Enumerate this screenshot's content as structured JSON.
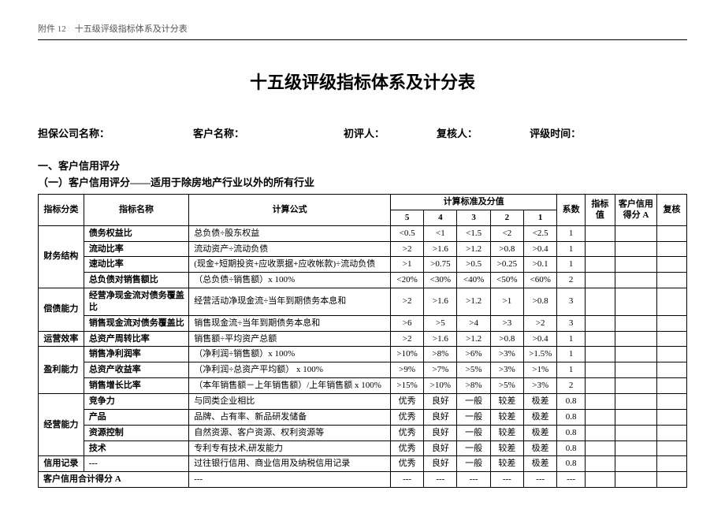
{
  "page_header": "附件 12　十五级评级指标体系及计分表",
  "title": "十五级评级指标体系及计分表",
  "form": {
    "company": "担保公司名称：",
    "customer": "客户名称：",
    "first_reviewer": "初评人：",
    "re_reviewer": "复核人：",
    "rating_time": "评级时间："
  },
  "section1": "一、客户信用评分",
  "section1_sub": "（一）客户信用评分——适用于除房地产行业以外的所有行业",
  "cols": {
    "cat": "指标分类",
    "name": "指标名称",
    "formula": "计算公式",
    "std_group": "计算标准及分值",
    "s5": "5",
    "s4": "4",
    "s3": "3",
    "s2": "2",
    "s1": "1",
    "coef": "系数",
    "val": "指标值",
    "scoreA": "客户信用得分 A",
    "rev": "复核"
  },
  "groups": [
    {
      "cat": "财务结构",
      "rows": [
        {
          "name": "债务权益比",
          "formula": "总负债÷股东权益",
          "s": [
            "<0.5",
            "<1",
            "<1.5",
            "<2",
            "<2.5"
          ],
          "coef": "1"
        },
        {
          "name": "流动比率",
          "formula": "流动资产÷流动负债",
          "s": [
            ">2",
            ">1.6",
            ">1.2",
            ">0.8",
            ">0.4"
          ],
          "coef": "1"
        },
        {
          "name": "速动比率",
          "formula": "(现金+短期投资+应收票据+应收帐款)÷流动负债",
          "s": [
            ">1",
            ">0.75",
            ">0.5",
            ">0.25",
            ">0.1"
          ],
          "coef": "1"
        },
        {
          "name": "总负债对销售额比",
          "formula": "（总负债÷销售额）x 100%",
          "s": [
            "<20%",
            "<30%",
            "<40%",
            "<50%",
            "<60%"
          ],
          "coef": "2"
        }
      ]
    },
    {
      "cat": "偿债能力",
      "rows": [
        {
          "name": "经营净现金流对债务覆盖比",
          "formula": "经营活动净现金流÷当年到期债务本息和",
          "s": [
            ">2",
            ">1.6",
            ">1.2",
            ">1",
            ">0.8"
          ],
          "coef": "3"
        },
        {
          "name": "销售现金流对债务覆盖比",
          "formula": "销售现金流÷当年到期债务本息和",
          "s": [
            ">6",
            ">5",
            ">4",
            ">3",
            ">2"
          ],
          "coef": "3"
        }
      ]
    },
    {
      "cat": "运营效率",
      "rows": [
        {
          "name": "总资产周转比率",
          "formula": "销售额÷平均资产总额",
          "s": [
            ">2",
            ">1.6",
            ">1.2",
            ">0.8",
            ">0.4"
          ],
          "coef": "1"
        }
      ]
    },
    {
      "cat": "盈利能力",
      "rows": [
        {
          "name": "销售净利润率",
          "formula": "（净利润÷销售额）x 100%",
          "s": [
            ">10%",
            ">8%",
            ">6%",
            ">3%",
            ">1.5%"
          ],
          "coef": "1"
        },
        {
          "name": "总资产收益率",
          "formula": "（净利润÷总资产平均额） x 100%",
          "s": [
            ">9%",
            ">7%",
            ">5%",
            ">3%",
            ">1%"
          ],
          "coef": "1"
        },
        {
          "name": "销售增长比率",
          "formula": "（本年销售额－上年销售额）/上年销售额 x 100%",
          "s": [
            ">15%",
            ">10%",
            ">8%",
            ">5%",
            ">3%"
          ],
          "coef": "2"
        }
      ]
    },
    {
      "cat": "经营能力",
      "rows": [
        {
          "name": "竞争力",
          "formula": "与同类企业相比",
          "s": [
            "优秀",
            "良好",
            "一般",
            "较差",
            "极差"
          ],
          "coef": "0.8"
        },
        {
          "name": "产品",
          "formula": "品牌、占有率、新品研发储备",
          "s": [
            "优秀",
            "良好",
            "一般",
            "较差",
            "极差"
          ],
          "coef": "0.8"
        },
        {
          "name": "资源控制",
          "formula": "自然资源、客户资源、权利资源等",
          "s": [
            "优秀",
            "良好",
            "一般",
            "较差",
            "极差"
          ],
          "coef": "0.8"
        },
        {
          "name": "技术",
          "formula": "专利专有技术,研发能力",
          "s": [
            "优秀",
            "良好",
            "一般",
            "较差",
            "极差"
          ],
          "coef": "0.8"
        }
      ]
    },
    {
      "cat": "信用记录",
      "rows": [
        {
          "name": "---",
          "formula": "过往银行信用、商业信用及纳税信用记录",
          "s": [
            "优秀",
            "良好",
            "一般",
            "较差",
            "极差"
          ],
          "coef": "0.8"
        }
      ]
    }
  ],
  "total_row": {
    "label": "客户信用合计得分 A",
    "name": "---",
    "formula": "---",
    "s": [
      "---",
      "---",
      "---",
      "---",
      "---"
    ],
    "coef": "---"
  },
  "colors": {
    "text": "#000000",
    "bg": "#ffffff",
    "border": "#000000",
    "muted": "#555555"
  },
  "typography": {
    "body_pt": 11,
    "title_pt": 22,
    "label_pt": 13,
    "family": "SimSun"
  }
}
